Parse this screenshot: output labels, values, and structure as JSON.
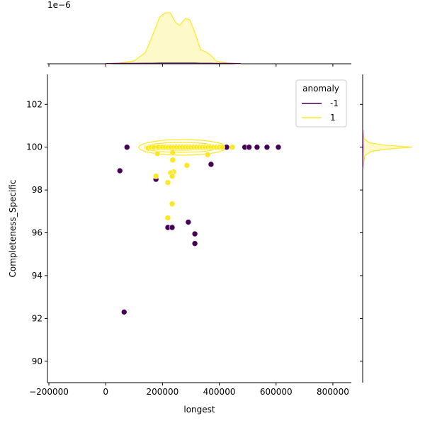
{
  "chart_data": [
    {
      "type": "scatter",
      "xlabel": "longest",
      "ylabel": "Completeness_Specific",
      "xlim": [
        -205000,
        865000
      ],
      "ylim": [
        89.0,
        103.4
      ],
      "xticks": [
        {
          "value": -200000,
          "label": "−200000"
        },
        0,
        200000,
        400000,
        600000,
        800000
      ],
      "yticks": [
        90,
        92,
        94,
        96,
        98,
        100,
        102
      ],
      "legend": {
        "title": "anomaly",
        "loc": "upper right"
      },
      "series": [
        {
          "name": "-1",
          "color": "#440154",
          "x": [
            75000,
            50000,
            177000,
            65000,
            371000,
            291000,
            219000,
            234000,
            314000,
            314000,
            413000,
            426000,
            490000,
            505000,
            533000,
            568000,
            608000
          ],
          "values": [
            100,
            98.9,
            98.5,
            92.3,
            99.2,
            96.5,
            96.25,
            96.25,
            95.95,
            95.5,
            100,
            100,
            100,
            100,
            100,
            100,
            100
          ]
        },
        {
          "name": "1",
          "color": "#fde725",
          "x": [
            150000,
            160000,
            170000,
            185000,
            200000,
            210000,
            220000,
            230000,
            240000,
            250000,
            260000,
            270000,
            280000,
            290000,
            300000,
            310000,
            320000,
            330000,
            340000,
            350000,
            360000,
            370000,
            380000,
            390000,
            400000,
            410000,
            446000,
            182000,
            236000,
            359000,
            236000,
            239000,
            229000,
            234000,
            177000,
            219000,
            286000,
            234000,
            219000
          ],
          "values": [
            99.95,
            100,
            100,
            100,
            100,
            100,
            100,
            100,
            100,
            100,
            100,
            100,
            100,
            100,
            100,
            100,
            100,
            100,
            100,
            100,
            100,
            100,
            100,
            100,
            100,
            100,
            100,
            99.7,
            99.75,
            99.65,
            99.4,
            98.85,
            98.8,
            98.65,
            98.65,
            98.35,
            99.15,
            97.35,
            96.7
          ]
        }
      ]
    },
    {
      "type": "kde-x",
      "offset_label": "1e−6",
      "ylim": [
        0,
        4
      ],
      "x": [
        0,
        50000,
        100000,
        140000,
        165000,
        190000,
        210000,
        227000,
        247000,
        260000,
        281000,
        296000,
        314000,
        334000,
        351000,
        371000,
        388000,
        426000,
        475000
      ],
      "series": [
        {
          "color": "#fde725",
          "values": [
            0,
            0.05,
            0.2,
            0.8,
            2.0,
            3.3,
            3.6,
            3.6,
            2.9,
            2.7,
            3.2,
            3.1,
            2.2,
            1.0,
            0.85,
            0.6,
            0.2,
            0.05,
            0
          ]
        },
        {
          "color": "#440154",
          "values": [
            0.02,
            0.03,
            0.03,
            0.04,
            0.04,
            0.05,
            0.05,
            0.05,
            0.05,
            0.05,
            0.05,
            0.05,
            0.05,
            0.04,
            0.04,
            0.04,
            0.03,
            0.03,
            0.02
          ]
        }
      ]
    },
    {
      "type": "kde-y",
      "xlim": [
        0,
        8
      ],
      "y": [
        99.0,
        99.6,
        99.8,
        99.9,
        100.0,
        100.1,
        100.2,
        100.4,
        100.8
      ],
      "series": [
        {
          "color": "#fde725",
          "values": [
            0,
            0.3,
            1.2,
            3.0,
            7.0,
            3.0,
            1.0,
            0.2,
            0
          ]
        },
        {
          "color": "#440154",
          "values": [
            0.02,
            0.03,
            0.04,
            0.05,
            0.05,
            0.05,
            0.04,
            0.03,
            0.02
          ]
        }
      ]
    }
  ]
}
